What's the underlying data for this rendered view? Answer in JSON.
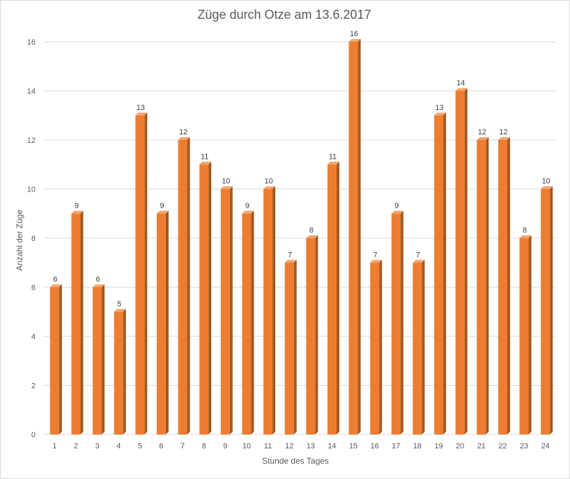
{
  "chart_data": {
    "type": "bar",
    "title": "Züge durch Otze am 13.6.2017",
    "xlabel": "Stunde des Tages",
    "ylabel": "Anzahl der Züge",
    "categories": [
      "1",
      "2",
      "3",
      "4",
      "5",
      "6",
      "7",
      "8",
      "9",
      "10",
      "11",
      "12",
      "13",
      "14",
      "15",
      "16",
      "17",
      "18",
      "19",
      "20",
      "21",
      "22",
      "23",
      "24"
    ],
    "values": [
      6,
      9,
      6,
      5,
      13,
      9,
      12,
      11,
      10,
      9,
      10,
      7,
      8,
      11,
      16,
      7,
      9,
      7,
      13,
      14,
      12,
      12,
      8,
      10
    ],
    "ylim": [
      0,
      16
    ],
    "yticks": [
      0,
      2,
      4,
      6,
      8,
      10,
      12,
      14,
      16
    ],
    "grid": true,
    "legend": "none",
    "data_labels": true,
    "style": "3d-column",
    "colors": {
      "bar_front": "#ed7d31",
      "bar_side": "#a5561f",
      "bar_top": "#f4a56d",
      "grid": "#d9d9d9"
    }
  }
}
